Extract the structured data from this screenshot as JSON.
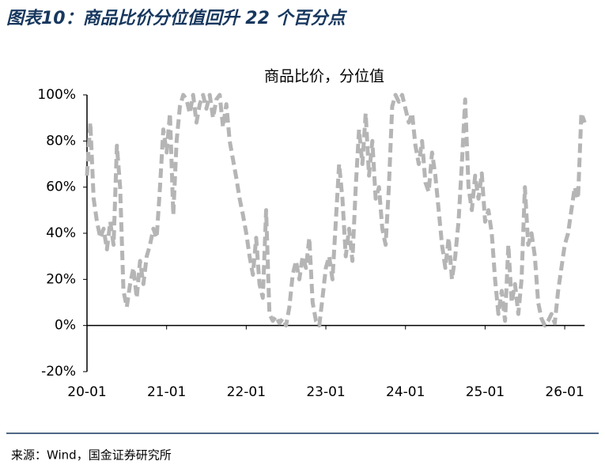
{
  "title": "图表10：商品比价分位值回升 22 个百分点",
  "source": "来源：Wind，国金证券研究所",
  "chart_data": {
    "type": "line",
    "title": "商品比价，分位值",
    "x": [
      0,
      0.5,
      1,
      1.5,
      2,
      2.5,
      3,
      3.5,
      4,
      4.5,
      5,
      5.5,
      6,
      6.5,
      7,
      7.5,
      8,
      8.5,
      9,
      9.5,
      10,
      10.5,
      11,
      11.5,
      12,
      12.5,
      13,
      13.5,
      14,
      14.5,
      15,
      15.5,
      16,
      16.5,
      17,
      17.5,
      18,
      18.5,
      19,
      19.5,
      20,
      20.5,
      21,
      21.5,
      22,
      22.5,
      23,
      23.5,
      24,
      24.5,
      25,
      25.5,
      26,
      26.5,
      27,
      27.5,
      28,
      28.5,
      29,
      29.5,
      30,
      30.5,
      31,
      31.5,
      32,
      32.5,
      33,
      33.5,
      34,
      34.5,
      35,
      35.5,
      36,
      36.5,
      37,
      37.5,
      38,
      38.5,
      39,
      39.5,
      40,
      40.5,
      41,
      41.5,
      42,
      42.5,
      43,
      43.5,
      44,
      44.5,
      45,
      45.5,
      46,
      46.5,
      47,
      47.5,
      48,
      48.5,
      49,
      49.5,
      50,
      50.5,
      51,
      51.5,
      52,
      52.5,
      53,
      53.5,
      54,
      54.5,
      55,
      55.5,
      56,
      56.5,
      57,
      57.5,
      58,
      58.5,
      59,
      59.5,
      60,
      60.5,
      61,
      61.5,
      62,
      62.5,
      63,
      63.5,
      64,
      64.5,
      65,
      65.5,
      66,
      66.5,
      67,
      67.5,
      68,
      68.5,
      69,
      69.5,
      70,
      70.5,
      71,
      71.5,
      72,
      72.5,
      73,
      73.5,
      74,
      74.5,
      75
    ],
    "series": [
      {
        "color": "#b5b5b5",
        "values": [
          65,
          88,
          55,
          45,
          38,
          42,
          33,
          45,
          35,
          78,
          60,
          15,
          8,
          18,
          25,
          12,
          28,
          18,
          30,
          35,
          42,
          38,
          60,
          85,
          75,
          92,
          48,
          80,
          95,
          100,
          98,
          92,
          100,
          88,
          96,
          100,
          94,
          100,
          90,
          98,
          100,
          86,
          96,
          80,
          72,
          64,
          55,
          48,
          40,
          30,
          22,
          38,
          18,
          12,
          50,
          5,
          2,
          4,
          1,
          3,
          0,
          8,
          22,
          28,
          20,
          30,
          25,
          38,
          10,
          2,
          0,
          12,
          25,
          30,
          20,
          45,
          70,
          55,
          30,
          42,
          28,
          60,
          85,
          70,
          92,
          65,
          80,
          55,
          60,
          42,
          35,
          60,
          95,
          100,
          97,
          100,
          94,
          88,
          92,
          78,
          70,
          80,
          62,
          58,
          75,
          65,
          50,
          35,
          25,
          38,
          20,
          30,
          45,
          70,
          98,
          60,
          50,
          65,
          55,
          66,
          45,
          50,
          40,
          20,
          5,
          15,
          2,
          35,
          10,
          18,
          5,
          20,
          60,
          35,
          40,
          30,
          10,
          3,
          0,
          2,
          5,
          1,
          15,
          25,
          35,
          40,
          50,
          60,
          55,
          92,
          88
        ]
      }
    ],
    "xlim": [
      0,
      75
    ],
    "xticks": [
      {
        "value": 0,
        "label": "20-01"
      },
      {
        "value": 12,
        "label": "21-01"
      },
      {
        "value": 24,
        "label": "22-01"
      },
      {
        "value": 36,
        "label": "23-01"
      },
      {
        "value": 48,
        "label": "24-01"
      },
      {
        "value": 60,
        "label": "25-01"
      },
      {
        "value": 72,
        "label": "26-01"
      }
    ],
    "ylim": [
      -20,
      100
    ],
    "yticks": [
      {
        "value": -20,
        "label": "-20%"
      },
      {
        "value": 0,
        "label": "0%"
      },
      {
        "value": 20,
        "label": "20%"
      },
      {
        "value": 40,
        "label": "40%"
      },
      {
        "value": 60,
        "label": "60%"
      },
      {
        "value": 80,
        "label": "80%"
      },
      {
        "value": 100,
        "label": "100%"
      }
    ],
    "grid": false
  }
}
